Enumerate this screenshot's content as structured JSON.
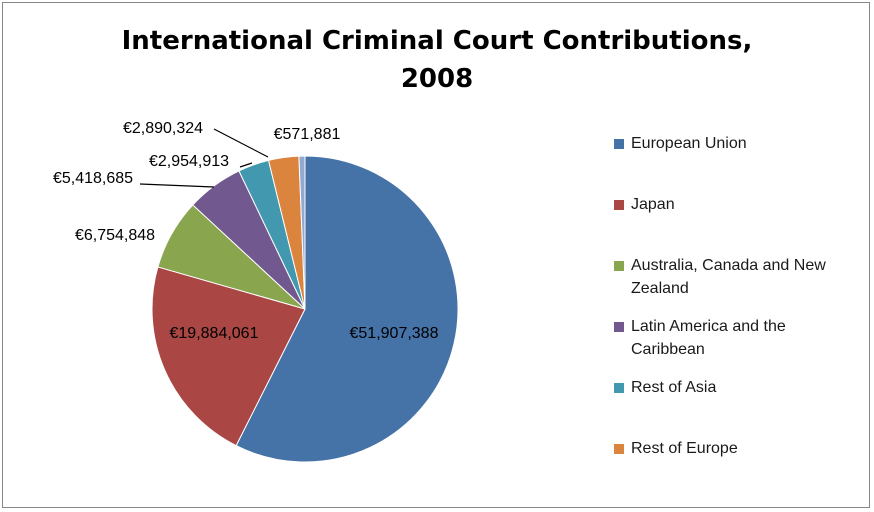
{
  "chart_data": {
    "type": "pie",
    "title": "International Criminal Court Contributions, 2008",
    "title_lines": [
      "International Criminal Court Contributions,",
      "2008"
    ],
    "currency": "€",
    "legend_position": "right",
    "series": [
      {
        "name": "European Union",
        "value": 51907388,
        "label": "€51,907,388",
        "color": "#4572a7"
      },
      {
        "name": "Japan",
        "value": 19884061,
        "label": "€19,884,061",
        "color": "#aa4643"
      },
      {
        "name": "Australia, Canada and New Zealand",
        "value": 6754848,
        "label": "€6,754,848",
        "color": "#89a54e"
      },
      {
        "name": "Latin America and the Caribbean",
        "value": 5418685,
        "label": "€5,418,685",
        "color": "#71588f"
      },
      {
        "name": "Rest of Asia",
        "value": 2954913,
        "label": "€2,954,913",
        "color": "#4198af"
      },
      {
        "name": "Rest of Europe",
        "value": 2890324,
        "label": "€2,890,324",
        "color": "#db843d"
      },
      {
        "name": "",
        "value": 571881,
        "label": "€571,881",
        "color": "#93a9cf"
      }
    ]
  }
}
